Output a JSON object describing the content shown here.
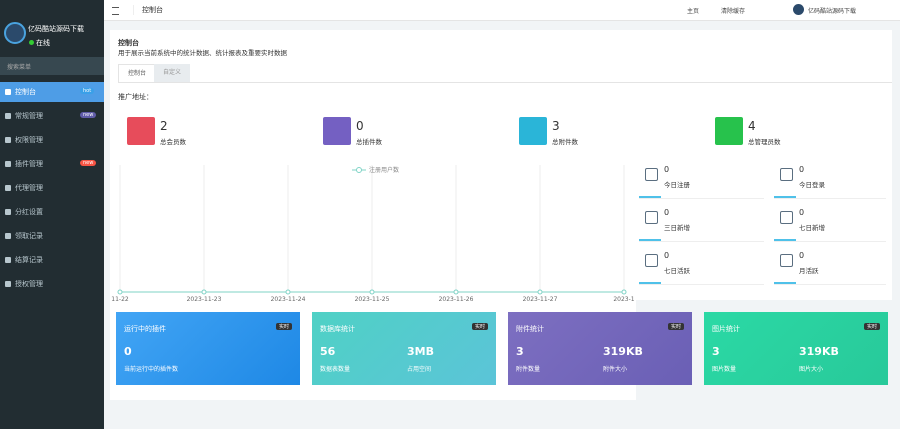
{
  "sidebar": {
    "user": "亿码酷站源码下载",
    "status": "在线",
    "search": "搜索菜单",
    "menu": [
      {
        "label": "控制台",
        "badge": "hot"
      },
      {
        "label": "常规管理",
        "badge": "new"
      },
      {
        "label": "权限管理"
      },
      {
        "label": "插件管理",
        "badge": "new"
      },
      {
        "label": "代理管理"
      },
      {
        "label": "分红设置"
      },
      {
        "label": "领取记录"
      },
      {
        "label": "结算记录"
      },
      {
        "label": "授权管理"
      }
    ]
  },
  "topbar": {
    "tab": "控制台",
    "links": [
      "主页",
      "清除缓存"
    ],
    "user": "亿码酷站源码下载"
  },
  "header": {
    "title": "控制台",
    "description": "用于展示当前系统中的统计数据、统计报表及重要实时数据",
    "tabs": [
      "控制台",
      "自定义"
    ]
  },
  "promo_label": "推广地址：",
  "stats": [
    {
      "value": 2,
      "label": "总会员数"
    },
    {
      "value": 0,
      "label": "总插件数"
    },
    {
      "value": 3,
      "label": "总附件数"
    },
    {
      "value": 4,
      "label": "总管理员数"
    }
  ],
  "chart": {
    "legend": "注册用户数",
    "categories": [
      "11-22",
      "2023-11-23",
      "2023-11-24",
      "2023-11-25",
      "2023-11-26",
      "2023-11-27",
      "2023-1"
    ],
    "values": [
      0,
      0,
      0,
      0,
      0,
      0,
      0
    ],
    "ylim": [
      0,
      1
    ]
  },
  "mini_stats": [
    {
      "value": 0,
      "label": "今日注册"
    },
    {
      "value": 0,
      "label": "今日登录"
    },
    {
      "value": 0,
      "label": "三日新增"
    },
    {
      "value": 0,
      "label": "七日新增"
    },
    {
      "value": 0,
      "label": "七日活跃"
    },
    {
      "value": 0,
      "label": "月活跃"
    }
  ],
  "cards": [
    {
      "title": "运行中的插件",
      "badge": "实时",
      "items": [
        {
          "value": 0,
          "label": "当前运行中的插件数"
        }
      ]
    },
    {
      "title": "数据库统计",
      "badge": "实时",
      "items": [
        {
          "value": 56,
          "label": "数据表数量"
        },
        {
          "value": "3MB",
          "label": "占用空间"
        }
      ]
    },
    {
      "title": "附件统计",
      "badge": "实时",
      "items": [
        {
          "value": 3,
          "label": "附件数量"
        },
        {
          "value": "319KB",
          "label": "附件大小"
        }
      ]
    },
    {
      "title": "图片统计",
      "badge": "实时",
      "items": [
        {
          "value": 3,
          "label": "图片数量"
        },
        {
          "value": "319KB",
          "label": "图片大小"
        }
      ]
    }
  ]
}
